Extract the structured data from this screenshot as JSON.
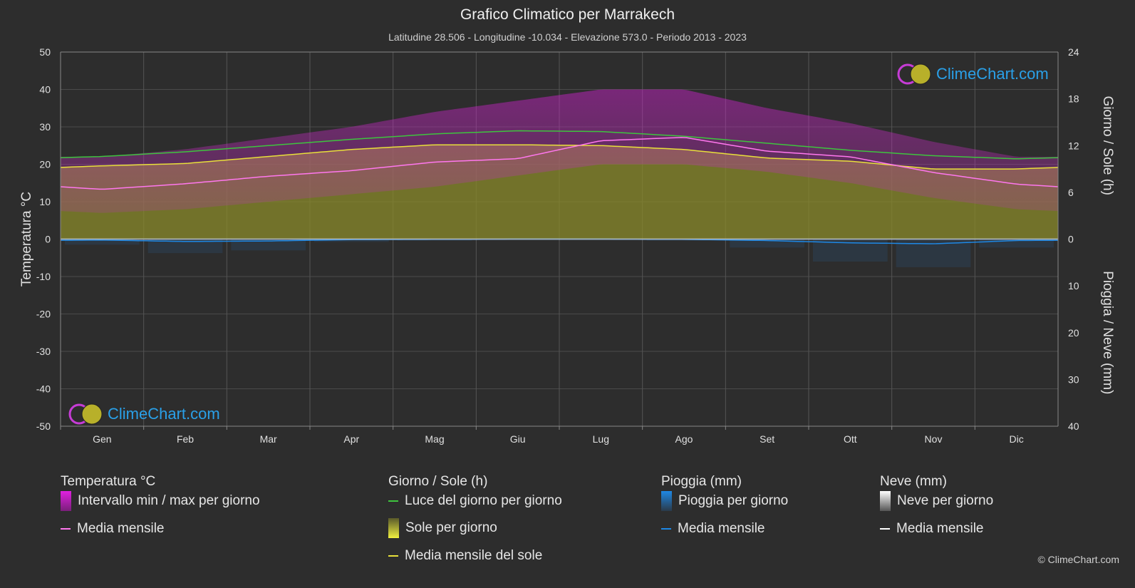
{
  "header": {
    "title": "Grafico Climatico per Marrakech",
    "subtitle": "Latitudine 28.506 - Longitudine -10.034 - Elevazione 573.0 - Periodo 2013 - 2023"
  },
  "logo": {
    "text": "ClimeChart.com"
  },
  "copyright": "© ClimeChart.com",
  "chart_data": {
    "type": "area",
    "categories": [
      "Gen",
      "Feb",
      "Mar",
      "Apr",
      "Mag",
      "Giu",
      "Lug",
      "Ago",
      "Set",
      "Ott",
      "Nov",
      "Dic"
    ],
    "left_axis": {
      "label": "Temperatura °C",
      "range": [
        -50,
        50
      ],
      "ticks": [
        50,
        40,
        30,
        20,
        10,
        0,
        -10,
        -20,
        -30,
        -40,
        -50
      ]
    },
    "right_axis_top": {
      "label": "Giorno / Sole (h)",
      "range": [
        0,
        24
      ],
      "ticks": [
        24,
        18,
        12,
        6,
        0
      ]
    },
    "right_axis_bottom": {
      "label": "Pioggia / Neve (mm)",
      "range": [
        0,
        40
      ],
      "ticks": [
        0,
        10,
        20,
        30,
        40
      ]
    },
    "grid": true,
    "series": [
      {
        "name": "Luce del giorno per giorno",
        "axis": "hours",
        "color": "#3ec43e",
        "values": [
          10.6,
          11.2,
          12.0,
          12.8,
          13.5,
          13.9,
          13.8,
          13.2,
          12.3,
          11.4,
          10.7,
          10.3
        ]
      },
      {
        "name": "Media mensile del sole",
        "axis": "hours",
        "color": "#e8e03a",
        "values": [
          9.4,
          9.7,
          10.6,
          11.5,
          12.1,
          12.1,
          12.0,
          11.5,
          10.4,
          10.0,
          9.0,
          9.0
        ]
      },
      {
        "name": "Media mensile",
        "axis": "temp",
        "color": "#ff77ee",
        "values": [
          13.3,
          14.8,
          16.8,
          18.3,
          20.6,
          21.5,
          26.3,
          27.2,
          23.5,
          22.0,
          17.8,
          14.7
        ]
      },
      {
        "name": "Intervallo min / max per giorno (min)",
        "axis": "temp",
        "values": [
          7,
          8,
          10,
          12,
          14,
          17,
          20,
          20,
          18,
          15,
          11,
          8
        ]
      },
      {
        "name": "Intervallo min / max per giorno (max)",
        "axis": "temp",
        "values": [
          22,
          24,
          27,
          30,
          34,
          37,
          40,
          40,
          35,
          31,
          26,
          22
        ]
      },
      {
        "name": "Media mensile pioggia",
        "axis": "rain",
        "color": "#1e88e5",
        "values": [
          0.2,
          0.5,
          0.4,
          0.1,
          0.05,
          0.0,
          0.0,
          0.05,
          0.3,
          0.8,
          1.0,
          0.3
        ]
      },
      {
        "name": "Media mensile neve",
        "axis": "rain",
        "color": "#ffffff",
        "values": [
          0,
          0,
          0,
          0,
          0,
          0,
          0,
          0,
          0,
          0,
          0,
          0
        ]
      }
    ]
  },
  "legend": {
    "temp": {
      "head": "Temperatura °C",
      "range": "Intervallo min / max per giorno",
      "mean": "Media mensile"
    },
    "sun": {
      "head": "Giorno / Sole (h)",
      "daylight": "Luce del giorno per giorno",
      "sun": "Sole per giorno",
      "sun_mean": "Media mensile del sole"
    },
    "rain": {
      "head": "Pioggia (mm)",
      "rain": "Pioggia per giorno",
      "mean": "Media mensile"
    },
    "snow": {
      "head": "Neve (mm)",
      "snow": "Neve per giorno",
      "mean": "Media mensile"
    }
  }
}
